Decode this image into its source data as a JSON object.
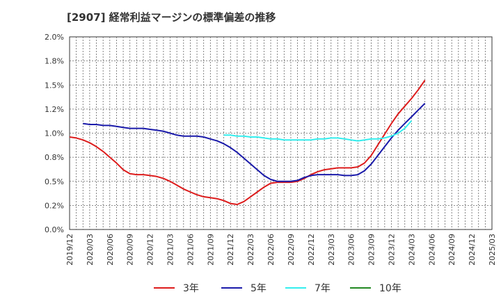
{
  "chart_data": {
    "type": "line",
    "title": "[2907]  経常利益マージンの標準偏差の推移",
    "xlabel": "",
    "ylabel": "",
    "ylim": [
      0,
      2.0
    ],
    "yticks": [
      "0.0%",
      "0.2%",
      "0.5%",
      "0.8%",
      "1.0%",
      "1.2%",
      "1.5%",
      "1.8%",
      "2.0%"
    ],
    "yticks_values": [
      0,
      0.25,
      0.5,
      0.75,
      1.0,
      1.25,
      1.5,
      1.75,
      2.0
    ],
    "xticks": [
      "2019/12",
      "2020/03",
      "2020/06",
      "2020/09",
      "2020/12",
      "2021/03",
      "2021/06",
      "2021/09",
      "2021/12",
      "2022/03",
      "2022/06",
      "2022/09",
      "2022/12",
      "2023/03",
      "2023/06",
      "2023/09",
      "2023/12",
      "2024/03",
      "2024/06",
      "2024/09",
      "2024/12",
      "2025/03"
    ],
    "grid": true,
    "legend_position": "bottom",
    "series": [
      {
        "name": "3年",
        "color": "#dd1c1c",
        "start_index": 0,
        "values": [
          0.96,
          0.95,
          0.93,
          0.9,
          0.86,
          0.81,
          0.75,
          0.69,
          0.62,
          0.58,
          0.57,
          0.57,
          0.56,
          0.55,
          0.53,
          0.5,
          0.46,
          0.42,
          0.39,
          0.36,
          0.34,
          0.33,
          0.32,
          0.3,
          0.27,
          0.26,
          0.29,
          0.34,
          0.39,
          0.44,
          0.48,
          0.49,
          0.49,
          0.49,
          0.5,
          0.53,
          0.57,
          0.6,
          0.62,
          0.63,
          0.64,
          0.64,
          0.64,
          0.65,
          0.69,
          0.77,
          0.88,
          0.99,
          1.1,
          1.2,
          1.28,
          1.36,
          1.45,
          1.55
        ]
      },
      {
        "name": "5年",
        "color": "#1a1aaa",
        "start_index": 2,
        "values": [
          1.1,
          1.09,
          1.09,
          1.08,
          1.08,
          1.07,
          1.06,
          1.05,
          1.05,
          1.05,
          1.04,
          1.03,
          1.02,
          1.0,
          0.98,
          0.97,
          0.97,
          0.97,
          0.96,
          0.94,
          0.92,
          0.89,
          0.85,
          0.8,
          0.74,
          0.68,
          0.62,
          0.56,
          0.52,
          0.5,
          0.5,
          0.5,
          0.51,
          0.54,
          0.56,
          0.57,
          0.57,
          0.57,
          0.57,
          0.56,
          0.56,
          0.57,
          0.61,
          0.68,
          0.77,
          0.86,
          0.95,
          1.03,
          1.1,
          1.17,
          1.24,
          1.31
        ]
      },
      {
        "name": "7年",
        "color": "#33eeee",
        "start_index": 23,
        "values": [
          0.98,
          0.98,
          0.97,
          0.97,
          0.96,
          0.96,
          0.95,
          0.94,
          0.94,
          0.93,
          0.93,
          0.93,
          0.93,
          0.93,
          0.94,
          0.94,
          0.95,
          0.95,
          0.94,
          0.93,
          0.92,
          0.93,
          0.94,
          0.94,
          0.95,
          0.97,
          1.0,
          1.05,
          1.13
        ]
      },
      {
        "name": "10年",
        "color": "#228822",
        "start_index": 0,
        "values": []
      }
    ]
  }
}
